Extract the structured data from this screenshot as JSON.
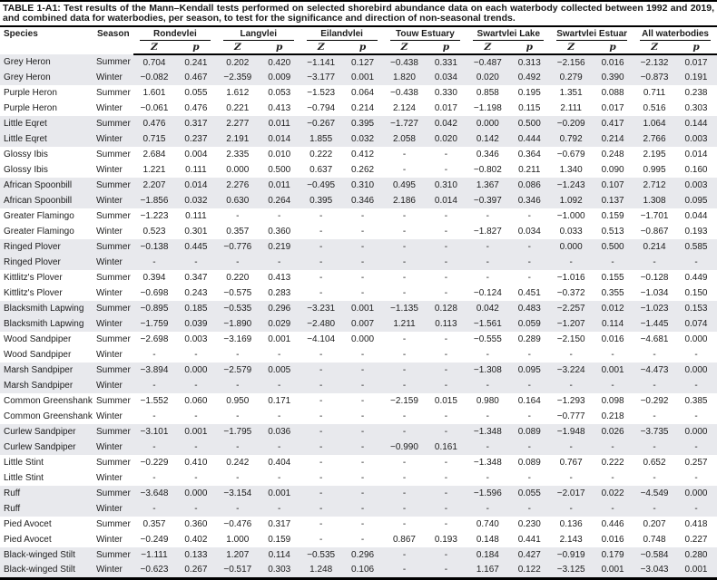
{
  "title": "TABLE 1-A1: Test results of the Mann–Kendall tests performed on selected shorebird abundance data on each waterbody collected between 1992 and 2019, and combined data for waterbodies, per season, to test for the significance and direction of non-seasonal trends.",
  "colors": {
    "row_shade": "#e8e9ed",
    "rule": "#000000"
  },
  "table": {
    "col_species": "Species",
    "col_season": "Season",
    "stat_z": "Z",
    "stat_p": "p",
    "waterbodies": [
      "Rondevlei",
      "Langvlei",
      "Eilandvlei",
      "Touw Estuary",
      "Swartvlei Lake",
      "Swartvlei Estuar",
      "All waterbodies"
    ],
    "rows": [
      {
        "species": "Grey Heron",
        "season": "Summer",
        "values": [
          "0.704",
          "0.241",
          "0.202",
          "0.420",
          "−1.141",
          "0.127",
          "−0.438",
          "0.331",
          "−0.487",
          "0.313",
          "−2.156",
          "0.016",
          "−2.132",
          "0.017"
        ]
      },
      {
        "species": "Grey Heron",
        "season": "Winter",
        "values": [
          "−0.082",
          "0.467",
          "−2.359",
          "0.009",
          "−3.177",
          "0.001",
          "1.820",
          "0.034",
          "0.020",
          "0.492",
          "0.279",
          "0.390",
          "−0.873",
          "0.191"
        ]
      },
      {
        "species": "Purple Heron",
        "season": "Summer",
        "values": [
          "1.601",
          "0.055",
          "1.612",
          "0.053",
          "−1.523",
          "0.064",
          "−0.438",
          "0.330",
          "0.858",
          "0.195",
          "1.351",
          "0.088",
          "0.711",
          "0.238"
        ]
      },
      {
        "species": "Purple Heron",
        "season": "Winter",
        "values": [
          "−0.061",
          "0.476",
          "0.221",
          "0.413",
          "−0.794",
          "0.214",
          "2.124",
          "0.017",
          "−1.198",
          "0.115",
          "2.111",
          "0.017",
          "0.516",
          "0.303"
        ]
      },
      {
        "species": "Little Eqret",
        "season": "Summer",
        "values": [
          "0.476",
          "0.317",
          "2.277",
          "0.011",
          "−0.267",
          "0.395",
          "−1.727",
          "0.042",
          "0.000",
          "0.500",
          "−0.209",
          "0.417",
          "1.064",
          "0.144"
        ]
      },
      {
        "species": "Little Eqret",
        "season": "Winter",
        "values": [
          "0.715",
          "0.237",
          "2.191",
          "0.014",
          "1.855",
          "0.032",
          "2.058",
          "0.020",
          "0.142",
          "0.444",
          "0.792",
          "0.214",
          "2.766",
          "0.003"
        ]
      },
      {
        "species": "Glossy Ibis",
        "season": "Summer",
        "values": [
          "2.684",
          "0.004",
          "2.335",
          "0.010",
          "0.222",
          "0.412",
          "-",
          "-",
          "0.346",
          "0.364",
          "−0.679",
          "0.248",
          "2.195",
          "0.014"
        ]
      },
      {
        "species": "Glossy Ibis",
        "season": "Winter",
        "values": [
          "1.221",
          "0.111",
          "0.000",
          "0.500",
          "0.637",
          "0.262",
          "-",
          "-",
          "−0.802",
          "0.211",
          "1.340",
          "0.090",
          "0.995",
          "0.160"
        ]
      },
      {
        "species": "African Spoonbill",
        "season": "Summer",
        "values": [
          "2.207",
          "0.014",
          "2.276",
          "0.011",
          "−0.495",
          "0.310",
          "0.495",
          "0.310",
          "1.367",
          "0.086",
          "−1.243",
          "0.107",
          "2.712",
          "0.003"
        ]
      },
      {
        "species": "African Spoonbill",
        "season": "Winter",
        "values": [
          "−1.856",
          "0.032",
          "0.630",
          "0.264",
          "0.395",
          "0.346",
          "2.186",
          "0.014",
          "−0.397",
          "0.346",
          "1.092",
          "0.137",
          "1.308",
          "0.095"
        ]
      },
      {
        "species": "Greater Flamingo",
        "season": "Summer",
        "values": [
          "−1.223",
          "0.111",
          "-",
          "-",
          "-",
          "-",
          "-",
          "-",
          "-",
          "-",
          "−1.000",
          "0.159",
          "−1.701",
          "0.044"
        ]
      },
      {
        "species": "Greater Flamingo",
        "season": "Winter",
        "values": [
          "0.523",
          "0.301",
          "0.357",
          "0.360",
          "-",
          "-",
          "-",
          "-",
          "−1.827",
          "0.034",
          "0.033",
          "0.513",
          "−0.867",
          "0.193"
        ]
      },
      {
        "species": "Ringed Plover",
        "season": "Summer",
        "values": [
          "−0.138",
          "0.445",
          "−0.776",
          "0.219",
          "-",
          "-",
          "-",
          "-",
          "-",
          "-",
          "0.000",
          "0.500",
          "0.214",
          "0.585"
        ]
      },
      {
        "species": "Ringed Plover",
        "season": "Winter",
        "values": [
          "-",
          "-",
          "-",
          "-",
          "-",
          "-",
          "-",
          "-",
          "-",
          "-",
          "-",
          "-",
          "-",
          "-"
        ]
      },
      {
        "species": "Kittlitz's Plover",
        "season": "Summer",
        "values": [
          "0.394",
          "0.347",
          "0.220",
          "0.413",
          "-",
          "-",
          "-",
          "-",
          "-",
          "-",
          "−1.016",
          "0.155",
          "−0.128",
          "0.449"
        ]
      },
      {
        "species": "Kittlitz's Plover",
        "season": "Winter",
        "values": [
          "−0.698",
          "0.243",
          "−0.575",
          "0.283",
          "-",
          "-",
          "-",
          "-",
          "−0.124",
          "0.451",
          "−0.372",
          "0.355",
          "−1.034",
          "0.150"
        ]
      },
      {
        "species": "Blacksmith Lapwing",
        "season": "Summer",
        "values": [
          "−0.895",
          "0.185",
          "−0.535",
          "0.296",
          "−3.231",
          "0.001",
          "−1.135",
          "0.128",
          "0.042",
          "0.483",
          "−2.257",
          "0.012",
          "−1.023",
          "0.153"
        ]
      },
      {
        "species": "Blacksmith Lapwing",
        "season": "Winter",
        "values": [
          "−1.759",
          "0.039",
          "−1.890",
          "0.029",
          "−2.480",
          "0.007",
          "1.211",
          "0.113",
          "−1.561",
          "0.059",
          "−1.207",
          "0.114",
          "−1.445",
          "0.074"
        ]
      },
      {
        "species": "Wood Sandpiper",
        "season": "Summer",
        "values": [
          "−2.698",
          "0.003",
          "−3.169",
          "0.001",
          "−4.104",
          "0.000",
          "-",
          "-",
          "−0.555",
          "0.289",
          "−2.150",
          "0.016",
          "−4.681",
          "0.000"
        ]
      },
      {
        "species": "Wood Sandpiper",
        "season": "Winter",
        "values": [
          "-",
          "-",
          "-",
          "-",
          "-",
          "-",
          "-",
          "-",
          "-",
          "-",
          "-",
          "-",
          "-",
          "-"
        ]
      },
      {
        "species": "Marsh Sandpiper",
        "season": "Summer",
        "values": [
          "−3.894",
          "0.000",
          "−2.579",
          "0.005",
          "-",
          "-",
          "-",
          "-",
          "−1.308",
          "0.095",
          "−3.224",
          "0.001",
          "−4.473",
          "0.000"
        ]
      },
      {
        "species": "Marsh Sandpiper",
        "season": "Winter",
        "values": [
          "-",
          "-",
          "-",
          "-",
          "-",
          "-",
          "-",
          "-",
          "-",
          "-",
          "-",
          "-",
          "-",
          "-"
        ]
      },
      {
        "species": "Common Greenshank",
        "season": "Summer",
        "values": [
          "−1.552",
          "0.060",
          "0.950",
          "0.171",
          "-",
          "-",
          "−2.159",
          "0.015",
          "0.980",
          "0.164",
          "−1.293",
          "0.098",
          "−0.292",
          "0.385"
        ]
      },
      {
        "species": "Common Greenshank",
        "season": "Winter",
        "values": [
          "-",
          "-",
          "-",
          "-",
          "-",
          "-",
          "-",
          "-",
          "-",
          "-",
          "−0.777",
          "0.218",
          "-",
          "-"
        ]
      },
      {
        "species": "Curlew Sandpiper",
        "season": "Summer",
        "values": [
          "−3.101",
          "0.001",
          "−1.795",
          "0.036",
          "-",
          "-",
          "-",
          "-",
          "−1.348",
          "0.089",
          "−1.948",
          "0.026",
          "−3.735",
          "0.000"
        ]
      },
      {
        "species": "Curlew Sandpiper",
        "season": "Winter",
        "values": [
          "-",
          "-",
          "-",
          "-",
          "-",
          "-",
          "−0.990",
          "0.161",
          "-",
          "-",
          "-",
          "-",
          "-",
          "-"
        ]
      },
      {
        "species": "Little Stint",
        "season": "Summer",
        "values": [
          "−0.229",
          "0.410",
          "0.242",
          "0.404",
          "-",
          "-",
          "-",
          "-",
          "−1.348",
          "0.089",
          "0.767",
          "0.222",
          "0.652",
          "0.257"
        ]
      },
      {
        "species": "Little Stint",
        "season": "Winter",
        "values": [
          "-",
          "-",
          "-",
          "-",
          "-",
          "-",
          "-",
          "-",
          "-",
          "-",
          "-",
          "-",
          "-",
          "-"
        ]
      },
      {
        "species": "Ruff",
        "season": "Summer",
        "values": [
          "−3.648",
          "0.000",
          "−3.154",
          "0.001",
          "-",
          "-",
          "-",
          "-",
          "−1.596",
          "0.055",
          "−2.017",
          "0.022",
          "−4.549",
          "0.000"
        ]
      },
      {
        "species": "Ruff",
        "season": "Winter",
        "values": [
          "-",
          "-",
          "-",
          "-",
          "-",
          "-",
          "-",
          "-",
          "-",
          "-",
          "-",
          "-",
          "-",
          "-"
        ]
      },
      {
        "species": "Pied Avocet",
        "season": "Summer",
        "values": [
          "0.357",
          "0.360",
          "−0.476",
          "0.317",
          "-",
          "-",
          "-",
          "-",
          "0.740",
          "0.230",
          "0.136",
          "0.446",
          "0.207",
          "0.418"
        ]
      },
      {
        "species": "Pied Avocet",
        "season": "Winter",
        "values": [
          "−0.249",
          "0.402",
          "1.000",
          "0.159",
          "-",
          "-",
          "0.867",
          "0.193",
          "0.148",
          "0.441",
          "2.143",
          "0.016",
          "0.748",
          "0.227"
        ]
      },
      {
        "species": "Black-winged Stilt",
        "season": "Summer",
        "values": [
          "−1.111",
          "0.133",
          "1.207",
          "0.114",
          "−0.535",
          "0.296",
          "-",
          "-",
          "0.184",
          "0.427",
          "−0.919",
          "0.179",
          "−0.584",
          "0.280"
        ]
      },
      {
        "species": "Black-winged Stilt",
        "season": "Winter",
        "values": [
          "−0.623",
          "0.267",
          "−0.517",
          "0.303",
          "1.248",
          "0.106",
          "-",
          "-",
          "1.167",
          "0.122",
          "−3.125",
          "0.001",
          "−3.043",
          "0.001"
        ]
      }
    ]
  }
}
